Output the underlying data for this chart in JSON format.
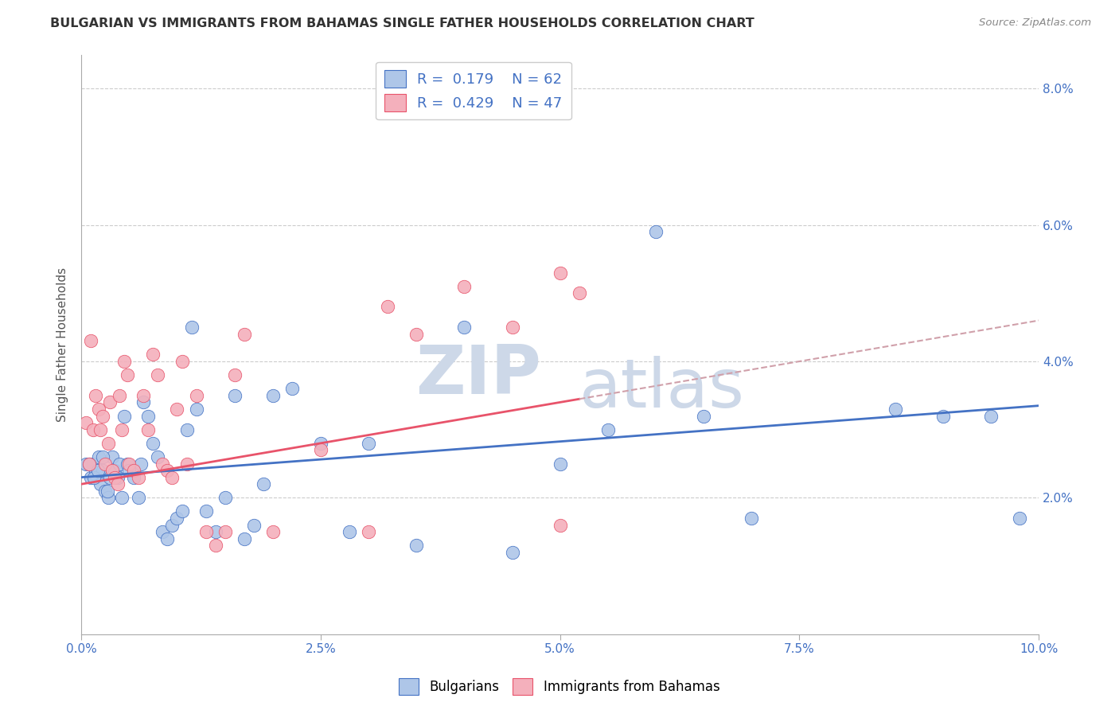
{
  "title": "BULGARIAN VS IMMIGRANTS FROM BAHAMAS SINGLE FATHER HOUSEHOLDS CORRELATION CHART",
  "source": "Source: ZipAtlas.com",
  "ylabel": "Single Father Households",
  "xlim": [
    0.0,
    10.0
  ],
  "ylim": [
    0.0,
    8.5
  ],
  "yticks": [
    2.0,
    4.0,
    6.0,
    8.0
  ],
  "xticks": [
    0.0,
    2.5,
    5.0,
    7.5,
    10.0
  ],
  "legend_entries": [
    {
      "label": "Bulgarians",
      "color": "#aec6e8",
      "R": "0.179",
      "N": "62"
    },
    {
      "label": "Immigrants from Bahamas",
      "color": "#f4b0bc",
      "R": "0.429",
      "N": "47"
    }
  ],
  "blue_scatter_x": [
    0.05,
    0.1,
    0.12,
    0.15,
    0.18,
    0.2,
    0.22,
    0.25,
    0.28,
    0.3,
    0.32,
    0.35,
    0.38,
    0.4,
    0.42,
    0.45,
    0.48,
    0.5,
    0.55,
    0.6,
    0.62,
    0.65,
    0.7,
    0.75,
    0.8,
    0.85,
    0.9,
    0.95,
    1.0,
    1.05,
    1.1,
    1.15,
    1.2,
    1.3,
    1.4,
    1.5,
    1.6,
    1.7,
    1.8,
    1.9,
    2.0,
    2.2,
    2.5,
    2.8,
    3.0,
    3.5,
    4.0,
    4.5,
    5.0,
    5.5,
    6.0,
    6.5,
    7.0,
    8.5,
    9.0,
    9.5,
    9.8,
    0.08,
    0.13,
    0.17,
    0.22,
    0.27
  ],
  "blue_scatter_y": [
    2.5,
    2.3,
    2.5,
    2.4,
    2.6,
    2.2,
    2.4,
    2.1,
    2.0,
    2.3,
    2.6,
    2.4,
    2.3,
    2.5,
    2.0,
    3.2,
    2.5,
    2.4,
    2.3,
    2.0,
    2.5,
    3.4,
    3.2,
    2.8,
    2.6,
    1.5,
    1.4,
    1.6,
    1.7,
    1.8,
    3.0,
    4.5,
    3.3,
    1.8,
    1.5,
    2.0,
    3.5,
    1.4,
    1.6,
    2.2,
    3.5,
    3.6,
    2.8,
    1.5,
    2.8,
    1.3,
    4.5,
    1.2,
    2.5,
    3.0,
    5.9,
    3.2,
    1.7,
    3.3,
    3.2,
    3.2,
    1.7,
    2.5,
    2.3,
    2.4,
    2.6,
    2.1
  ],
  "pink_scatter_x": [
    0.05,
    0.08,
    0.1,
    0.12,
    0.15,
    0.18,
    0.2,
    0.22,
    0.25,
    0.28,
    0.3,
    0.32,
    0.35,
    0.38,
    0.4,
    0.42,
    0.45,
    0.48,
    0.5,
    0.55,
    0.6,
    0.65,
    0.7,
    0.75,
    0.8,
    0.85,
    0.9,
    0.95,
    1.0,
    1.05,
    1.1,
    1.2,
    1.3,
    1.4,
    1.5,
    1.6,
    1.7,
    2.0,
    2.5,
    3.0,
    3.2,
    3.5,
    4.0,
    4.5,
    5.0,
    5.2,
    5.0
  ],
  "pink_scatter_y": [
    3.1,
    2.5,
    4.3,
    3.0,
    3.5,
    3.3,
    3.0,
    3.2,
    2.5,
    2.8,
    3.4,
    2.4,
    2.3,
    2.2,
    3.5,
    3.0,
    4.0,
    3.8,
    2.5,
    2.4,
    2.3,
    3.5,
    3.0,
    4.1,
    3.8,
    2.5,
    2.4,
    2.3,
    3.3,
    4.0,
    2.5,
    3.5,
    1.5,
    1.3,
    1.5,
    3.8,
    4.4,
    1.5,
    2.7,
    1.5,
    4.8,
    4.4,
    5.1,
    4.5,
    5.3,
    5.0,
    1.6
  ],
  "blue_line_x": [
    0.0,
    10.0
  ],
  "blue_line_y": [
    2.3,
    3.35
  ],
  "pink_line_x": [
    0.0,
    10.0
  ],
  "pink_line_y": [
    2.2,
    4.6
  ],
  "pink_dashed_cutoff": 5.2,
  "blue_color": "#4472c4",
  "pink_color": "#e8536a",
  "blue_scatter_color": "#aec6e8",
  "pink_scatter_color": "#f4b0bc",
  "background_color": "#ffffff",
  "watermark_zip": "ZIP",
  "watermark_atlas": "atlas",
  "watermark_color": "#cdd8e8"
}
